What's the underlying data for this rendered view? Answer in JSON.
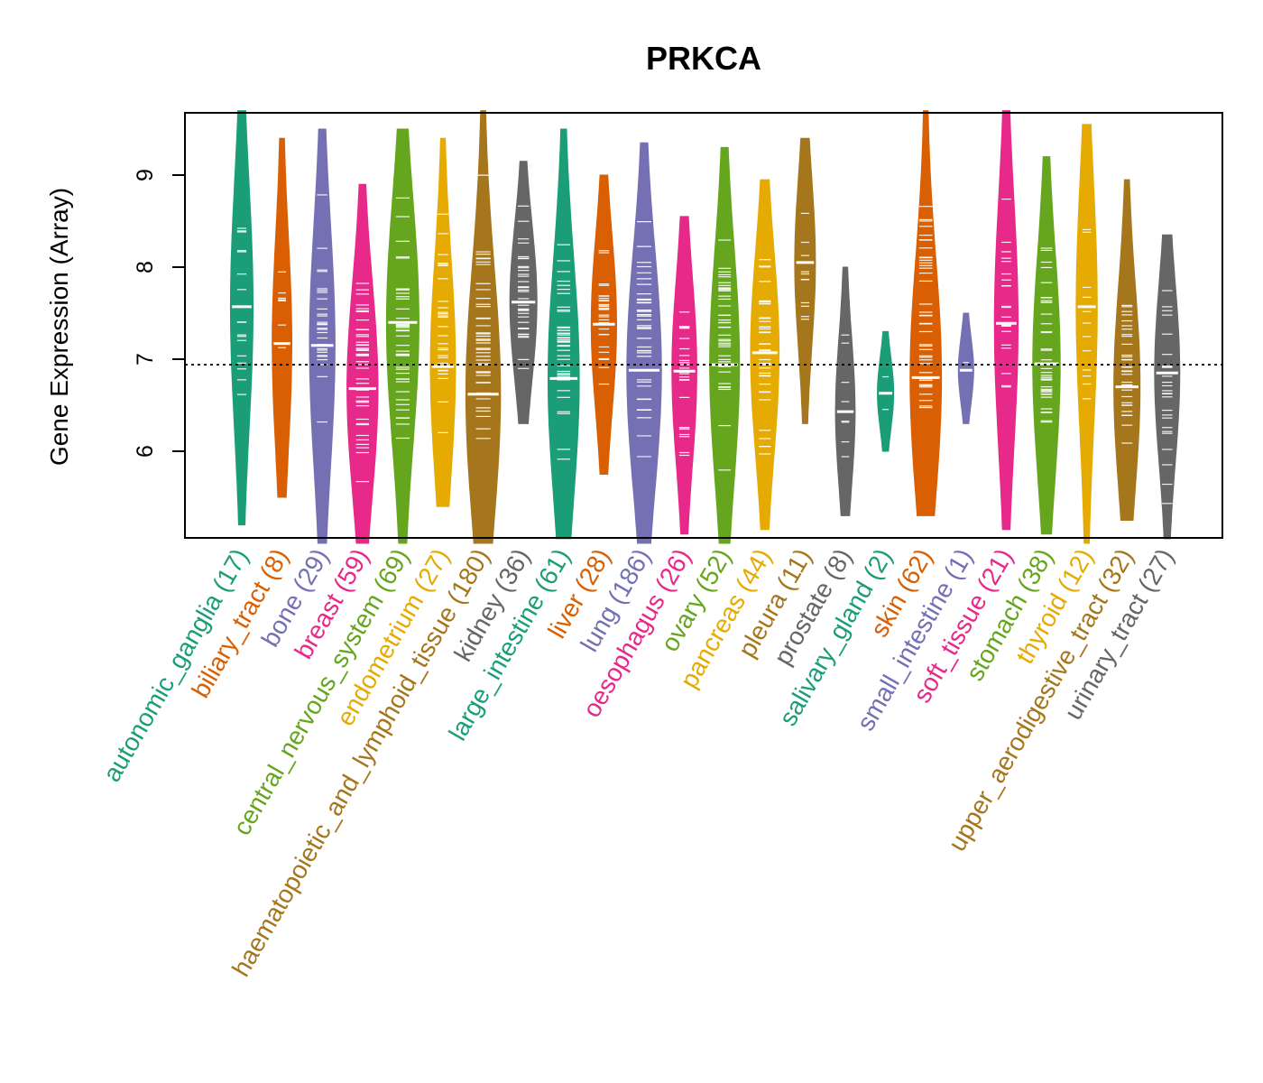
{
  "chart_data": {
    "type": "violin",
    "title": "PRKCA",
    "ylabel": "Gene Expression (Array)",
    "xlabel": "",
    "ylim": [
      5.0,
      9.7
    ],
    "yticks": [
      6,
      7,
      8,
      9
    ],
    "reference_line": 6.94,
    "categories": [
      {
        "name": "autonomic_ganglia",
        "n": 17,
        "median": 7.57,
        "min": 5.2,
        "max": 9.7,
        "color": "#1B9E77"
      },
      {
        "name": "biliary_tract",
        "n": 8,
        "median": 7.17,
        "min": 5.5,
        "max": 9.4,
        "color": "#D95F02"
      },
      {
        "name": "bone",
        "n": 29,
        "median": 7.15,
        "min": 5.0,
        "max": 9.5,
        "color": "#7570B3"
      },
      {
        "name": "breast",
        "n": 59,
        "median": 6.68,
        "min": 5.0,
        "max": 8.9,
        "color": "#E7298A"
      },
      {
        "name": "central_nervous_system",
        "n": 69,
        "median": 7.4,
        "min": 5.0,
        "max": 9.5,
        "color": "#66A61E"
      },
      {
        "name": "endometrium",
        "n": 27,
        "median": 6.92,
        "min": 5.4,
        "max": 9.4,
        "color": "#E6AB02"
      },
      {
        "name": "haematopoietic_and_lymphoid_tissue",
        "n": 180,
        "median": 6.62,
        "min": 5.0,
        "max": 9.7,
        "color": "#A6761D"
      },
      {
        "name": "kidney",
        "n": 36,
        "median": 7.62,
        "min": 6.3,
        "max": 9.15,
        "color": "#666666"
      },
      {
        "name": "large_intestine",
        "n": 61,
        "median": 6.79,
        "min": 5.05,
        "max": 9.5,
        "color": "#1B9E77"
      },
      {
        "name": "liver",
        "n": 28,
        "median": 7.38,
        "min": 5.75,
        "max": 9.0,
        "color": "#D95F02"
      },
      {
        "name": "lung",
        "n": 186,
        "median": 6.88,
        "min": 5.0,
        "max": 9.35,
        "color": "#7570B3"
      },
      {
        "name": "oesophagus",
        "n": 26,
        "median": 6.87,
        "min": 5.1,
        "max": 8.55,
        "color": "#E7298A"
      },
      {
        "name": "ovary",
        "n": 52,
        "median": 6.94,
        "min": 5.0,
        "max": 9.3,
        "color": "#66A61E"
      },
      {
        "name": "pancreas",
        "n": 44,
        "median": 7.07,
        "min": 5.15,
        "max": 8.95,
        "color": "#E6AB02"
      },
      {
        "name": "pleura",
        "n": 11,
        "median": 8.05,
        "min": 6.3,
        "max": 9.4,
        "color": "#A6761D"
      },
      {
        "name": "prostate",
        "n": 8,
        "median": 6.43,
        "min": 5.3,
        "max": 8.0,
        "color": "#666666"
      },
      {
        "name": "salivary_gland",
        "n": 2,
        "median": 6.63,
        "min": 6.0,
        "max": 7.3,
        "color": "#1B9E77"
      },
      {
        "name": "skin",
        "n": 62,
        "median": 6.8,
        "min": 5.3,
        "max": 9.7,
        "color": "#D95F02"
      },
      {
        "name": "small_intestine",
        "n": 1,
        "median": 6.88,
        "min": 6.3,
        "max": 7.5,
        "color": "#7570B3"
      },
      {
        "name": "soft_tissue",
        "n": 21,
        "median": 7.39,
        "min": 5.15,
        "max": 9.7,
        "color": "#E7298A"
      },
      {
        "name": "stomach",
        "n": 38,
        "median": 6.95,
        "min": 5.1,
        "max": 9.2,
        "color": "#66A61E"
      },
      {
        "name": "thyroid",
        "n": 12,
        "median": 7.57,
        "min": 5.0,
        "max": 9.55,
        "color": "#E6AB02"
      },
      {
        "name": "upper_aerodigestive_tract",
        "n": 32,
        "median": 6.7,
        "min": 5.25,
        "max": 8.95,
        "color": "#A6761D"
      },
      {
        "name": "urinary_tract",
        "n": 27,
        "median": 6.85,
        "min": 5.05,
        "max": 8.35,
        "color": "#666666"
      }
    ]
  }
}
